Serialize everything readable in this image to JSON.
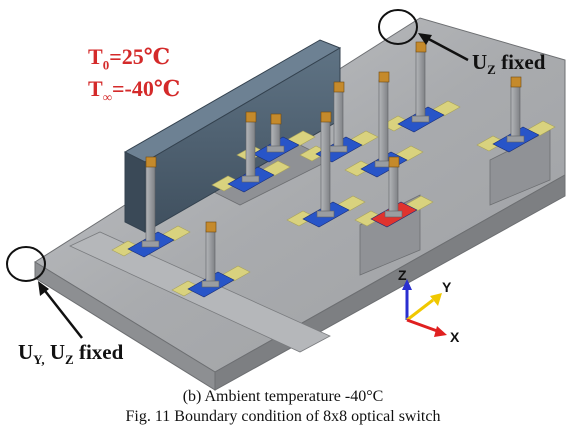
{
  "figure": {
    "temperature_labels": {
      "initial_symbol": "T",
      "initial_sub": "0",
      "initial_value": "=25℃",
      "ambient_symbol": "T",
      "ambient_sub": "∞",
      "ambient_value": "=-40℃"
    },
    "top_right_bc": {
      "symbol": "U",
      "sub": "Z",
      "text": "fixed"
    },
    "bottom_left_bc": {
      "symbol1": "U",
      "sub1": "Y,",
      "symbol2": "U",
      "sub2": "Z",
      "text": "fixed"
    },
    "axes": {
      "z": "Z",
      "y": "Y",
      "x": "X"
    },
    "colors": {
      "plate": "#a7a9ab",
      "plate_dark": "#8b8d90",
      "blue_pad": "#2855c8",
      "yellow_pad": "#d9d27e",
      "red_pad": "#e0332e",
      "post": "#8f9296",
      "beam": "#4f6172",
      "text_red": "#d42a2a"
    }
  },
  "caption": {
    "subcaption": "(b) Ambient temperature -40°C",
    "figure_caption": "Fig. 11 Boundary condition of 8x8 optical switch"
  }
}
